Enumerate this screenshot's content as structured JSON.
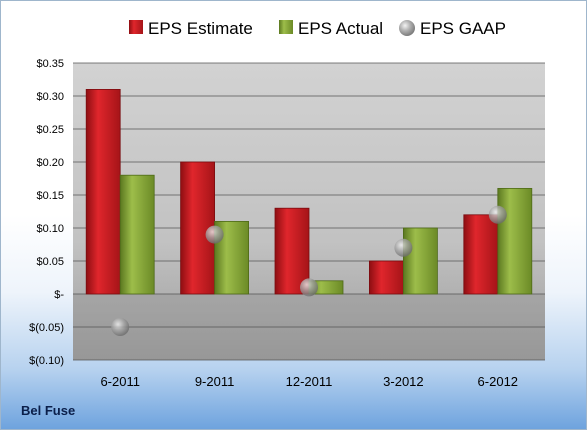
{
  "company": "Bel Fuse",
  "chart_data": {
    "type": "bar",
    "categories": [
      "6-2011",
      "9-2011",
      "12-2011",
      "3-2012",
      "6-2012"
    ],
    "series": [
      {
        "name": "EPS Estimate",
        "type": "bar",
        "color": "#c0161c",
        "values": [
          0.31,
          0.2,
          0.13,
          0.05,
          0.12
        ]
      },
      {
        "name": "EPS Actual",
        "type": "bar",
        "color": "#7a9a2e",
        "values": [
          0.18,
          0.11,
          0.02,
          0.1,
          0.16
        ]
      },
      {
        "name": "EPS GAAP",
        "type": "scatter",
        "color": "#9a9a9a",
        "values": [
          -0.05,
          0.09,
          0.01,
          0.07,
          0.12
        ]
      }
    ],
    "ylim": [
      -0.1,
      0.35
    ],
    "yticks": [
      0.35,
      0.3,
      0.25,
      0.2,
      0.15,
      0.1,
      0.05,
      0,
      -0.05,
      -0.1
    ],
    "ytick_labels": [
      "$0.35",
      "$0.30",
      "$0.25",
      "$0.20",
      "$0.15",
      "$0.10",
      "$0.05",
      "$-",
      "$(0.05)",
      "$(0.10)"
    ],
    "grid": true,
    "legend_position": "top"
  }
}
